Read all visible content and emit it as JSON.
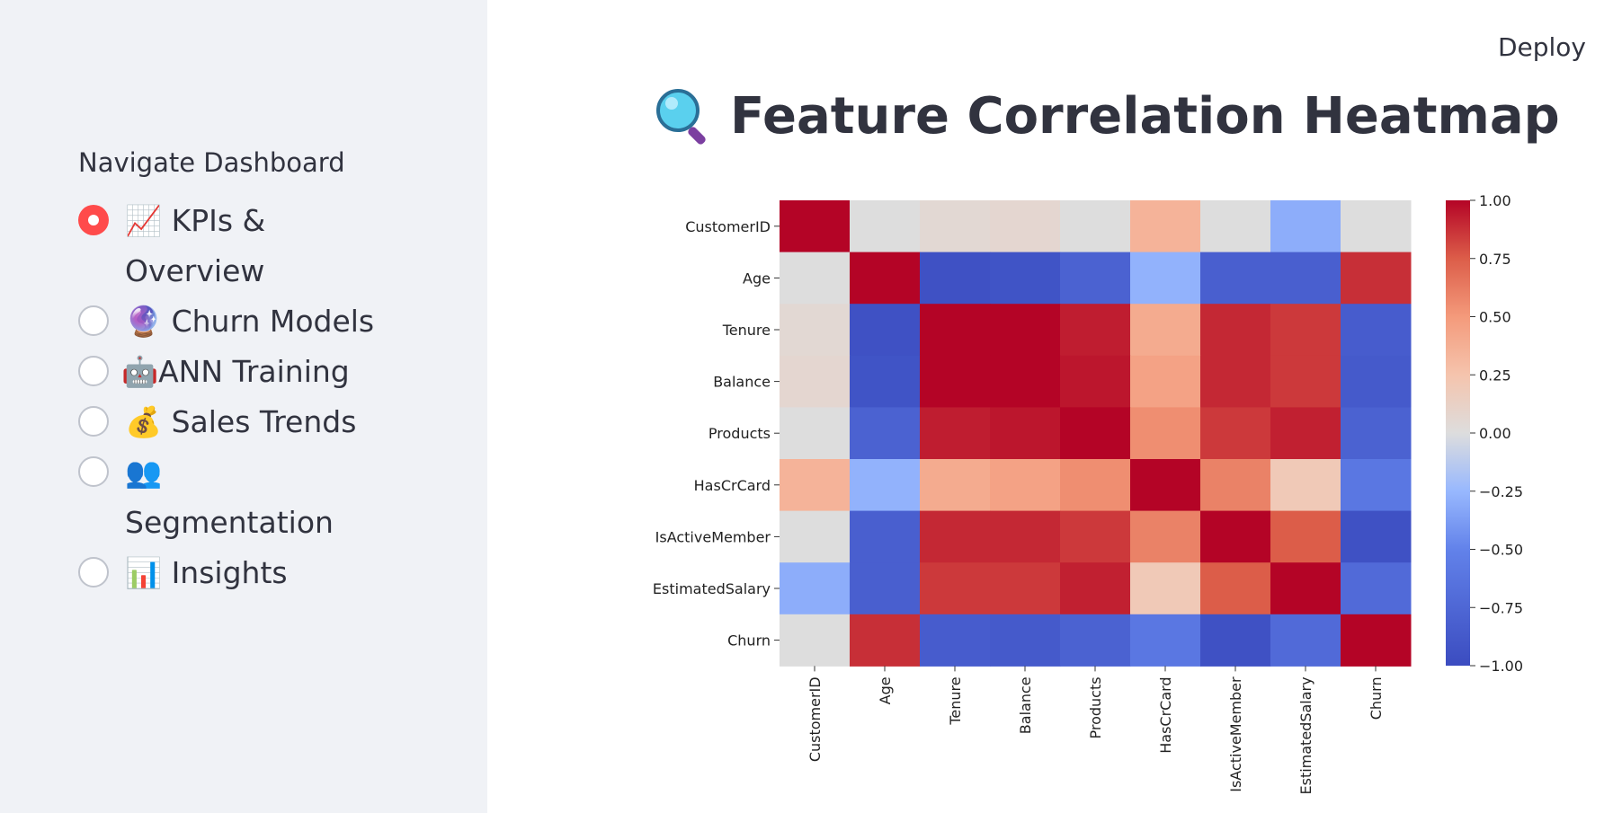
{
  "sidebar": {
    "caption": "Navigate Dashboard",
    "items": [
      {
        "label": "📈 KPIs & Overview",
        "checked": true
      },
      {
        "label": "🔮 Churn Models",
        "checked": false
      },
      {
        "label": "🤖ANN Training",
        "checked": false
      },
      {
        "label": "💰 Sales Trends",
        "checked": false
      },
      {
        "label": "👥 Segmentation",
        "checked": false
      },
      {
        "label": "📊 Insights",
        "checked": false
      }
    ]
  },
  "header": {
    "deploy_label": "Deploy"
  },
  "main": {
    "title": "Feature Correlation Heatmap",
    "title_icon": "magnifier-icon"
  },
  "chart_data": {
    "type": "heatmap",
    "labels": [
      "CustomerID",
      "Age",
      "Tenure",
      "Balance",
      "Products",
      "HasCrCard",
      "IsActiveMember",
      "EstimatedSalary",
      "Churn"
    ],
    "values": [
      [
        1.0,
        0.0,
        0.05,
        0.07,
        0.0,
        0.35,
        0.0,
        -0.3,
        0.0
      ],
      [
        0.0,
        1.0,
        -0.95,
        -0.93,
        -0.8,
        -0.28,
        -0.82,
        -0.82,
        0.88
      ],
      [
        0.05,
        -0.95,
        1.0,
        1.0,
        0.93,
        0.4,
        0.9,
        0.85,
        -0.85
      ],
      [
        0.07,
        -0.93,
        1.0,
        1.0,
        0.95,
        0.45,
        0.9,
        0.85,
        -0.87
      ],
      [
        0.0,
        -0.8,
        0.93,
        0.95,
        1.0,
        0.55,
        0.85,
        0.92,
        -0.8
      ],
      [
        0.35,
        -0.28,
        0.4,
        0.45,
        0.55,
        1.0,
        0.6,
        0.2,
        -0.6
      ],
      [
        0.0,
        -0.82,
        0.9,
        0.9,
        0.85,
        0.6,
        1.0,
        0.75,
        -0.95
      ],
      [
        -0.3,
        -0.82,
        0.85,
        0.85,
        0.92,
        0.2,
        0.75,
        1.0,
        -0.72
      ],
      [
        0.0,
        0.88,
        -0.85,
        -0.87,
        -0.8,
        -0.6,
        -0.95,
        -0.72,
        1.0
      ]
    ],
    "colorbar_ticks": [
      "1.00",
      "0.75",
      "0.50",
      "0.25",
      "0.00",
      "−0.25",
      "−0.50",
      "−0.75",
      "−1.00"
    ],
    "vmin": -1,
    "vmax": 1
  }
}
